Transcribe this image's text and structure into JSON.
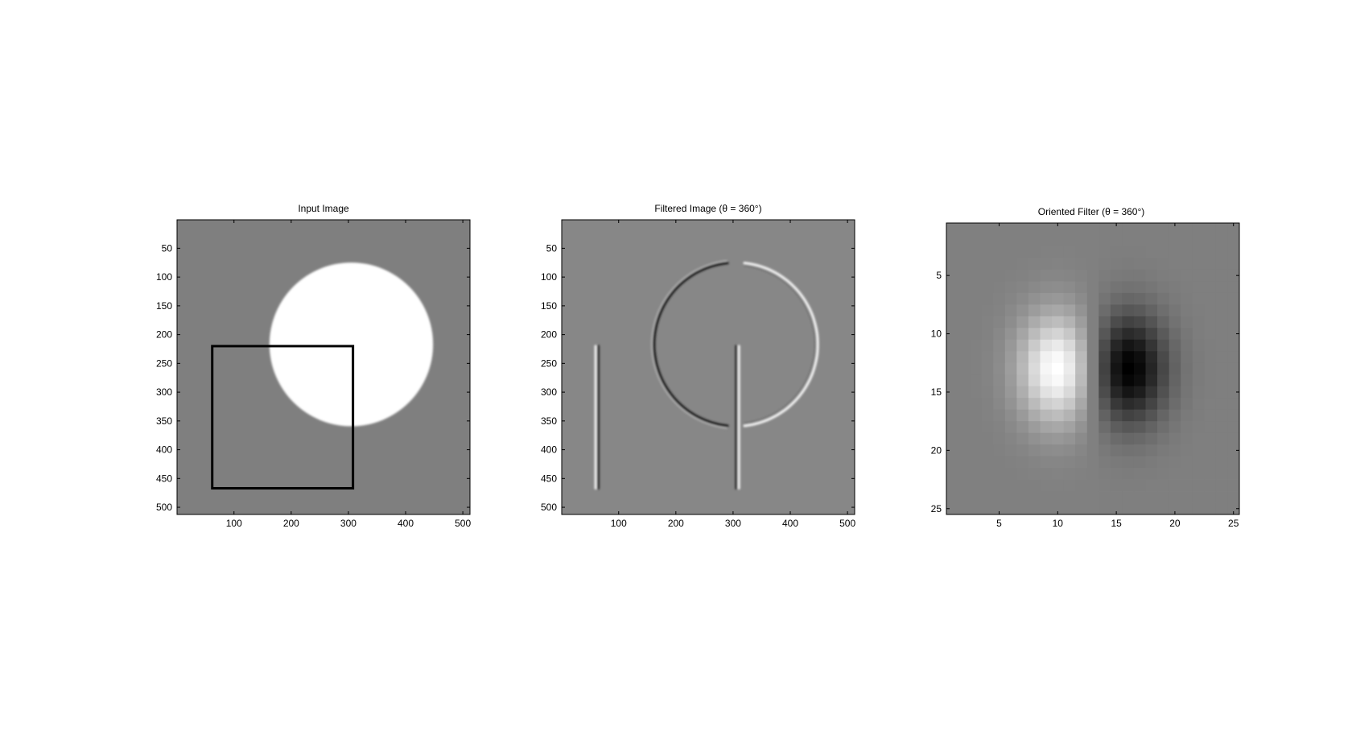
{
  "figure": {
    "background": "#ffffff",
    "panels": [
      "Input Image",
      "Filtered Image (θ = 360°)",
      "Oriented Filter (θ = 360°)"
    ]
  },
  "chart_data": [
    {
      "type": "heatmap",
      "title": "Input Image",
      "xlabel": "",
      "ylabel": "",
      "xlim": [
        0.5,
        512.5
      ],
      "ylim": [
        0.5,
        512.5
      ],
      "y_reversed": true,
      "grid": false,
      "colormap": "gray",
      "xticks": [
        100,
        200,
        300,
        400,
        500
      ],
      "yticks": [
        50,
        100,
        150,
        200,
        250,
        300,
        350,
        400,
        450,
        500
      ],
      "background_level": 0.5,
      "shapes": [
        {
          "kind": "disk",
          "center": [
            305,
            217
          ],
          "radius": 143,
          "level": 1.0
        },
        {
          "kind": "rectangle-outline",
          "x": [
            62,
            308
          ],
          "y": [
            220,
            467
          ],
          "level": 0.0
        }
      ]
    },
    {
      "type": "heatmap",
      "title": "Filtered Image (θ = 360°)",
      "xlabel": "",
      "ylabel": "",
      "xlim": [
        0.5,
        512.5
      ],
      "ylim": [
        0.5,
        512.5
      ],
      "y_reversed": true,
      "grid": false,
      "colormap": "gray",
      "xticks": [
        100,
        200,
        300,
        400,
        500
      ],
      "yticks": [
        50,
        100,
        150,
        200,
        250,
        300,
        350,
        400,
        450,
        500
      ],
      "background_level": 0.53,
      "features": [
        {
          "kind": "vertical-edge",
          "x": 62,
          "y": [
            220,
            467
          ],
          "polarity": "light-dark"
        },
        {
          "kind": "vertical-edge",
          "x": 308,
          "y": [
            220,
            467
          ],
          "polarity": "dark-light"
        },
        {
          "kind": "arc-edge",
          "center": [
            305,
            217
          ],
          "radius": 143,
          "side": "left",
          "polarity": "dark"
        },
        {
          "kind": "arc-edge",
          "center": [
            305,
            217
          ],
          "radius": 143,
          "side": "right",
          "polarity": "light"
        }
      ]
    },
    {
      "type": "heatmap",
      "title": "Oriented Filter (θ = 360°)",
      "xlabel": "",
      "ylabel": "",
      "xlim": [
        0.5,
        25.5
      ],
      "ylim": [
        0.5,
        25.5
      ],
      "y_reversed": true,
      "grid": false,
      "colormap": "gray",
      "xticks": [
        5,
        10,
        15,
        20,
        25
      ],
      "yticks": [
        5,
        10,
        15,
        20,
        25
      ],
      "size": [
        25,
        25
      ],
      "lobes": [
        {
          "center": [
            10,
            13
          ],
          "sign": "positive",
          "sigma": [
            2.3,
            3.3
          ]
        },
        {
          "center": [
            16,
            13
          ],
          "sign": "negative",
          "sigma": [
            2.3,
            3.3
          ]
        }
      ]
    }
  ]
}
